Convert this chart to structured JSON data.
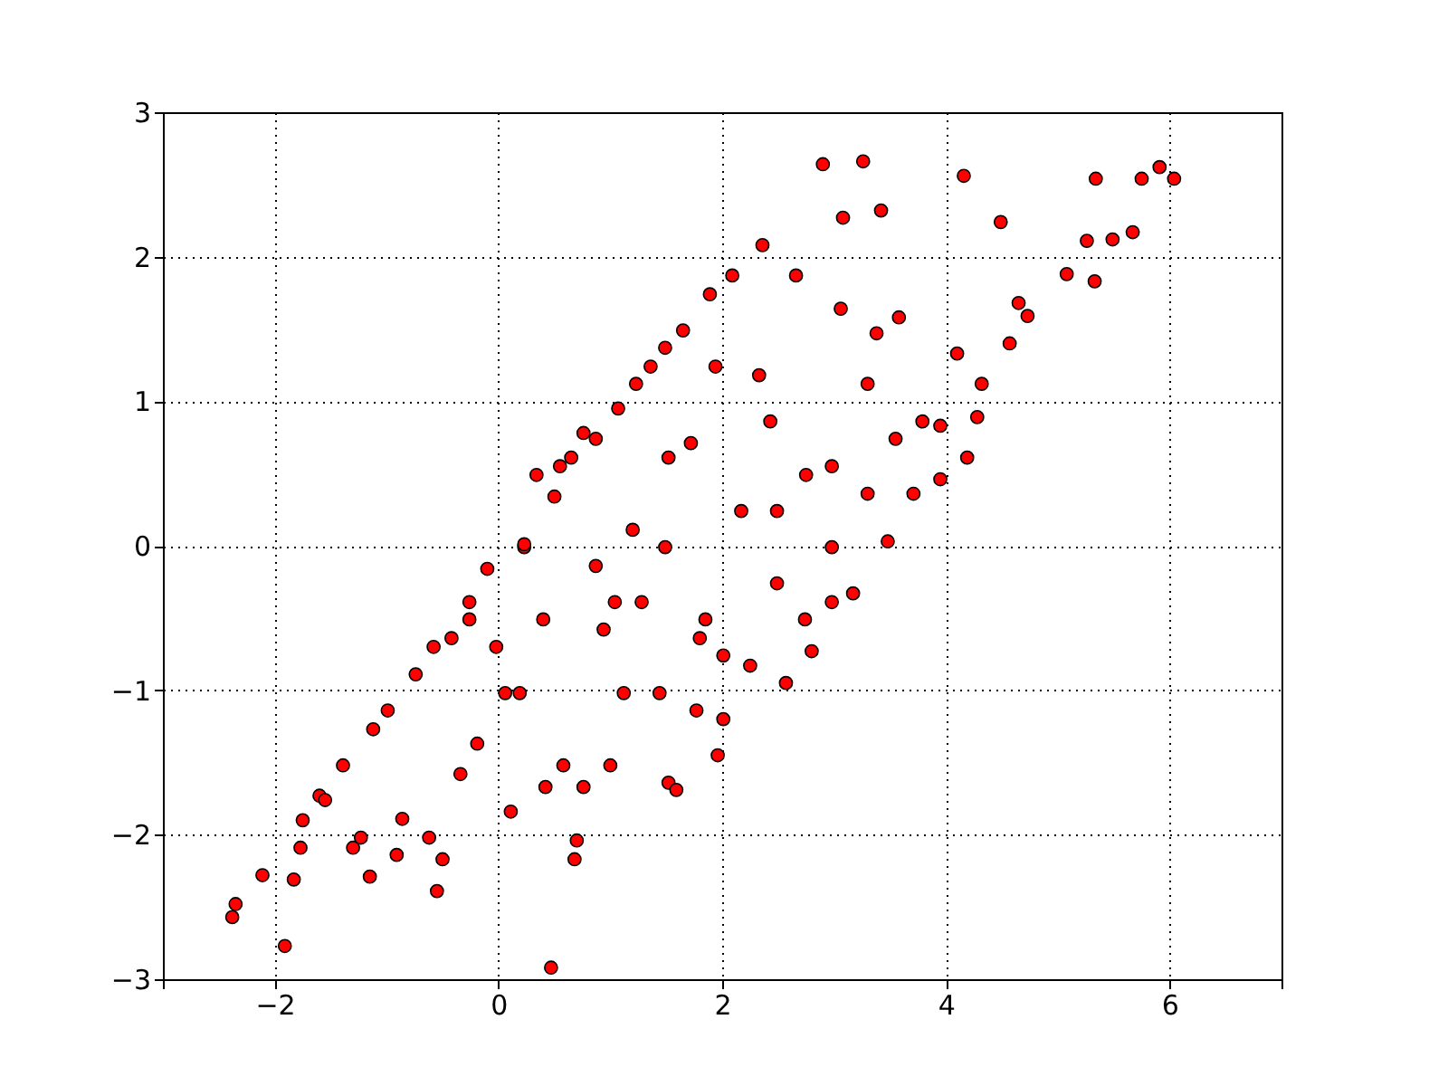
{
  "chart_data": {
    "type": "scatter",
    "xlim": [
      -3,
      7
    ],
    "xticks": [
      {
        "value": -3,
        "label": null
      },
      -2,
      0,
      2,
      4,
      6,
      {
        "value": 7,
        "label": null
      }
    ],
    "ylim": [
      -3,
      3
    ],
    "yticks": [
      -3,
      -2,
      -1,
      0,
      1,
      2,
      3
    ],
    "grid": true,
    "marker": "circle",
    "series": [
      {
        "color": "#ff0000",
        "x": [
          -2.38,
          -2.35,
          -2.11,
          -1.91,
          -1.83,
          -1.75,
          -1.77,
          -1.6,
          -1.55,
          -1.39,
          -1.3,
          -1.23,
          -1.15,
          -1.12,
          -0.99,
          -0.91,
          -0.86,
          -0.74,
          -0.62,
          -0.55,
          -0.5,
          -0.42,
          -0.34,
          -0.26,
          -0.19,
          -0.1,
          -0.02,
          0.06,
          0.11,
          0.19,
          0.23,
          0.34,
          0.4,
          0.5,
          0.42,
          0.47,
          0.58,
          0.65,
          0.68,
          0.7,
          0.76,
          0.87,
          0.94,
          1.0,
          1.07,
          1.12,
          1.2,
          1.23,
          1.28,
          1.36,
          1.44,
          1.49,
          1.49,
          1.52,
          1.59,
          1.65,
          1.72,
          1.8,
          1.89,
          1.94,
          1.96,
          2.01,
          2.09,
          2.17,
          2.25,
          2.33,
          2.36,
          2.43,
          2.49,
          2.57,
          2.66,
          2.75,
          2.8,
          2.9,
          2.98,
          3.06,
          3.08,
          3.17,
          3.26,
          3.3,
          3.38,
          3.42,
          3.48,
          3.58,
          3.71,
          3.79,
          3.95,
          4.1,
          4.16,
          4.19,
          4.28,
          4.32,
          4.49,
          4.57,
          4.65,
          4.73,
          5.08,
          5.26,
          5.33,
          5.34,
          5.49,
          5.67,
          5.75,
          5.91,
          6.04,
          0.55,
          0.76,
          0.23,
          -0.26,
          -0.58,
          0.87,
          1.04,
          1.52,
          2.49,
          2.98,
          3.3,
          3.55,
          3.95,
          2.98,
          2.74,
          1.85,
          2.01,
          1.77
        ],
        "values": [
          -2.57,
          -2.48,
          -2.28,
          -2.77,
          -2.31,
          -1.9,
          -2.09,
          -1.73,
          -1.76,
          -1.52,
          -2.09,
          -2.02,
          -2.29,
          -1.27,
          -1.14,
          -2.14,
          -1.89,
          -0.89,
          -2.02,
          -2.39,
          -2.17,
          -0.64,
          -1.58,
          -0.39,
          -1.37,
          -0.16,
          -0.7,
          -1.02,
          -1.84,
          -1.02,
          -0.01,
          0.49,
          -0.51,
          0.34,
          -1.67,
          -2.92,
          -1.52,
          0.61,
          -2.17,
          -2.04,
          -1.67,
          0.74,
          -0.58,
          -1.52,
          0.95,
          -1.02,
          0.11,
          1.12,
          -0.39,
          1.24,
          -1.02,
          1.37,
          -0.01,
          -1.64,
          -1.69,
          1.49,
          0.71,
          -0.64,
          1.74,
          1.24,
          -1.45,
          -0.76,
          1.87,
          0.24,
          -0.83,
          1.18,
          2.08,
          0.86,
          -0.26,
          -0.95,
          1.87,
          0.49,
          -0.73,
          2.64,
          -0.01,
          1.64,
          2.27,
          -0.33,
          2.66,
          1.12,
          1.47,
          2.32,
          0.03,
          1.58,
          0.36,
          0.86,
          0.46,
          1.33,
          2.56,
          0.61,
          0.89,
          1.12,
          2.24,
          1.4,
          1.68,
          1.59,
          1.88,
          2.11,
          1.83,
          2.54,
          2.12,
          2.17,
          2.54,
          2.62,
          2.54,
          0.55,
          0.78,
          0.01,
          -0.51,
          -0.7,
          -0.14,
          -0.39,
          0.61,
          0.24,
          0.55,
          0.36,
          0.74,
          0.83,
          -0.39,
          -0.51,
          -0.51,
          -1.2,
          -1.14
        ]
      }
    ]
  }
}
